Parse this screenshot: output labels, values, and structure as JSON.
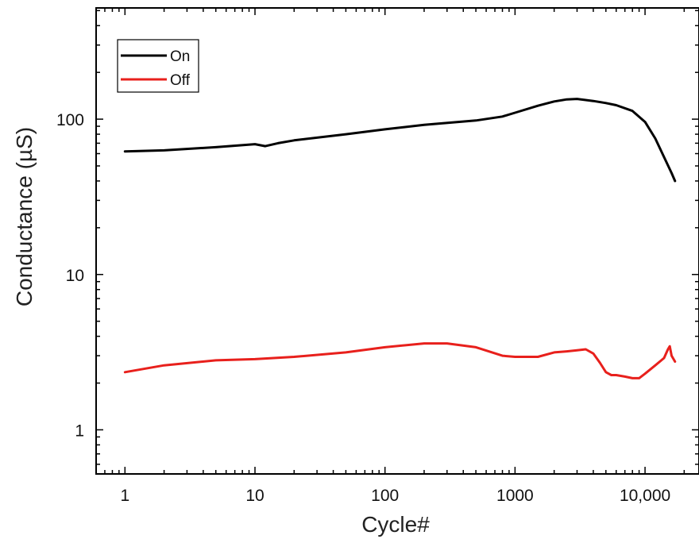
{
  "chart_data": {
    "type": "line",
    "xlabel": "Cycle#",
    "ylabel": "Conductance (µS)",
    "xscale": "log",
    "yscale": "log",
    "xlim": [
      0.6,
      26000
    ],
    "ylim": [
      0.52,
      520
    ],
    "xticks": [
      {
        "value": 1,
        "label": "1"
      },
      {
        "value": 10,
        "label": "10"
      },
      {
        "value": 100,
        "label": "100"
      },
      {
        "value": 1000,
        "label": "1000"
      },
      {
        "value": 10000,
        "label": "10,000"
      }
    ],
    "yticks": [
      {
        "value": 1,
        "label": "1"
      },
      {
        "value": 10,
        "label": "10"
      },
      {
        "value": 100,
        "label": "100"
      }
    ],
    "grid": false,
    "legend": {
      "position": "top-left"
    },
    "series": [
      {
        "name": "On",
        "color": "#000000",
        "x": [
          1,
          2,
          5,
          10,
          12,
          15,
          20,
          50,
          100,
          200,
          500,
          800,
          1000,
          1500,
          2000,
          2500,
          3000,
          4000,
          5000,
          6000,
          8000,
          10000,
          12000,
          14000,
          16000,
          17000
        ],
        "y": [
          62,
          63,
          66,
          69,
          67,
          70,
          73,
          80,
          86,
          92,
          98,
          104,
          110,
          122,
          130,
          134,
          135,
          131,
          127,
          123,
          113,
          96,
          75,
          57,
          45,
          40
        ]
      },
      {
        "name": "Off",
        "color": "#e8201c",
        "x": [
          1,
          2,
          5,
          10,
          20,
          50,
          100,
          200,
          300,
          500,
          800,
          1000,
          1500,
          2000,
          2500,
          3000,
          3500,
          4000,
          4500,
          5000,
          5500,
          6000,
          7000,
          8000,
          9000,
          10000,
          12000,
          14000,
          15000,
          15500,
          16000,
          17000
        ],
        "y": [
          2.35,
          2.6,
          2.8,
          2.85,
          2.95,
          3.15,
          3.4,
          3.6,
          3.6,
          3.4,
          3.0,
          2.95,
          2.95,
          3.15,
          3.2,
          3.25,
          3.3,
          3.1,
          2.7,
          2.35,
          2.25,
          2.25,
          2.2,
          2.15,
          2.15,
          2.3,
          2.6,
          2.9,
          3.3,
          3.45,
          3.0,
          2.75
        ]
      }
    ]
  }
}
